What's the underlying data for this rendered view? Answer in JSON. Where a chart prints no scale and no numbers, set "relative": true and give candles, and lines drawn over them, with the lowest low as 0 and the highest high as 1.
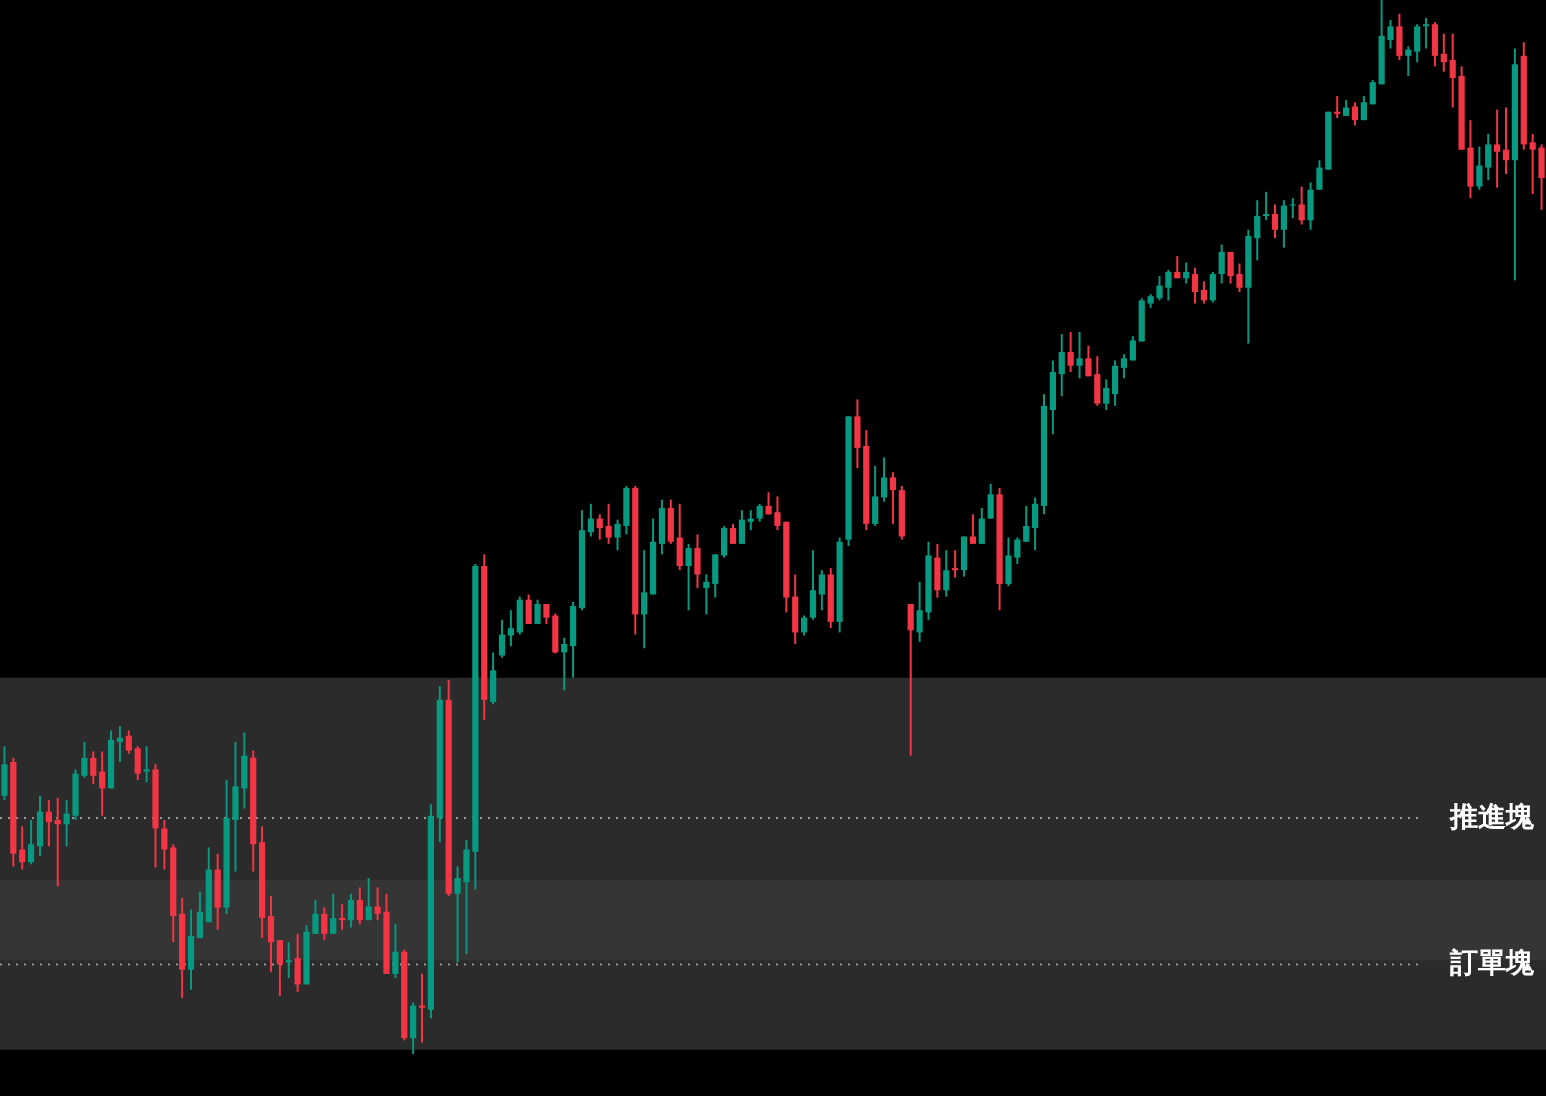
{
  "chart_data": {
    "type": "candlestick",
    "relative": true,
    "categories": [
      null,
      null,
      null,
      null,
      null,
      null,
      null,
      null,
      null,
      null,
      null,
      null,
      null,
      null,
      null,
      null,
      null,
      null,
      null,
      null,
      null,
      null,
      null,
      null,
      null,
      null,
      null,
      null,
      null,
      null,
      null,
      null,
      null,
      null,
      null,
      null,
      null,
      null,
      null,
      null,
      null,
      null,
      null,
      null,
      null,
      null,
      null,
      null,
      null,
      null,
      null,
      null,
      null,
      null,
      null,
      null,
      null,
      null,
      null,
      null,
      null,
      null,
      null,
      null,
      null,
      null,
      null,
      null,
      null,
      null,
      null,
      null,
      null,
      null,
      null,
      null,
      null,
      null,
      null,
      null,
      null,
      null,
      null,
      null,
      null,
      null,
      null,
      null,
      null,
      null,
      null,
      null,
      null,
      null,
      null,
      null,
      null,
      null,
      null,
      null,
      null,
      null,
      null,
      null,
      null,
      null,
      null,
      null,
      null,
      null,
      null,
      null,
      null,
      null,
      null,
      null,
      null,
      null,
      null,
      null,
      null,
      null,
      null,
      null,
      null,
      null,
      null,
      null,
      null,
      null,
      null,
      null,
      null,
      null,
      null,
      null,
      null,
      null,
      null,
      null,
      null,
      null,
      null,
      null,
      null,
      null,
      null,
      null,
      null,
      null,
      null,
      null,
      null,
      null,
      null,
      null,
      null,
      null,
      null,
      null,
      null,
      null,
      null,
      null,
      null,
      null,
      null,
      null,
      null,
      null,
      null,
      null,
      null,
      null
    ],
    "ohlc": [
      [
        0.245,
        0.292,
        0.241,
        0.275
      ],
      [
        0.277,
        0.281,
        0.178,
        0.19
      ],
      [
        0.194,
        0.216,
        0.175,
        0.182
      ],
      [
        0.182,
        0.222,
        0.18,
        0.199
      ],
      [
        0.197,
        0.245,
        0.188,
        0.23
      ],
      [
        0.23,
        0.241,
        0.197,
        0.22
      ],
      [
        0.222,
        0.243,
        0.159,
        0.218
      ],
      [
        0.218,
        0.241,
        0.197,
        0.228
      ],
      [
        0.226,
        0.27,
        0.222,
        0.266
      ],
      [
        0.264,
        0.296,
        0.262,
        0.281
      ],
      [
        0.281,
        0.287,
        0.256,
        0.264
      ],
      [
        0.268,
        0.287,
        0.226,
        0.252
      ],
      [
        0.252,
        0.307,
        0.252,
        0.298
      ],
      [
        0.296,
        0.311,
        0.277,
        0.3
      ],
      [
        0.302,
        0.307,
        0.285,
        0.288
      ],
      [
        0.29,
        0.292,
        0.26,
        0.266
      ],
      [
        0.268,
        0.292,
        0.258,
        0.27
      ],
      [
        0.27,
        0.275,
        0.177,
        0.214
      ],
      [
        0.214,
        0.222,
        0.175,
        0.194
      ],
      [
        0.196,
        0.199,
        0.106,
        0.131
      ],
      [
        0.133,
        0.148,
        0.053,
        0.08
      ],
      [
        0.08,
        0.137,
        0.061,
        0.112
      ],
      [
        0.11,
        0.154,
        0.11,
        0.135
      ],
      [
        0.125,
        0.196,
        0.125,
        0.175
      ],
      [
        0.175,
        0.19,
        0.118,
        0.139
      ],
      [
        0.139,
        0.26,
        0.133,
        0.224
      ],
      [
        0.222,
        0.296,
        0.173,
        0.254
      ],
      [
        0.252,
        0.305,
        0.233,
        0.283
      ],
      [
        0.281,
        0.288,
        0.173,
        0.199
      ],
      [
        0.201,
        0.216,
        0.11,
        0.129
      ],
      [
        0.131,
        0.15,
        0.078,
        0.106
      ],
      [
        0.108,
        0.108,
        0.055,
        0.085
      ],
      [
        0.087,
        0.106,
        0.072,
        0.089
      ],
      [
        0.091,
        0.114,
        0.059,
        0.066
      ],
      [
        0.066,
        0.122,
        0.066,
        0.116
      ],
      [
        0.114,
        0.146,
        0.114,
        0.133
      ],
      [
        0.133,
        0.139,
        0.108,
        0.114
      ],
      [
        0.114,
        0.152,
        0.114,
        0.129
      ],
      [
        0.129,
        0.142,
        0.118,
        0.127
      ],
      [
        0.127,
        0.152,
        0.12,
        0.146
      ],
      [
        0.146,
        0.158,
        0.123,
        0.127
      ],
      [
        0.127,
        0.167,
        0.127,
        0.14
      ],
      [
        0.14,
        0.158,
        0.127,
        0.133
      ],
      [
        0.135,
        0.152,
        0.076,
        0.076
      ],
      [
        0.076,
        0.123,
        0.072,
        0.097
      ],
      [
        0.097,
        0.099,
        0.013,
        0.015
      ],
      [
        0.015,
        0.049,
        0,
        0.046
      ],
      [
        0.046,
        0.076,
        0.011,
        0.044
      ],
      [
        0.042,
        0.237,
        0.034,
        0.226
      ],
      [
        0.224,
        0.349,
        0.201,
        0.336
      ],
      [
        0.336,
        0.355,
        0.15,
        0.152
      ],
      [
        0.152,
        0.178,
        0.087,
        0.167
      ],
      [
        0.163,
        0.203,
        0.095,
        0.194
      ],
      [
        0.192,
        0.465,
        0.156,
        0.463
      ],
      [
        0.463,
        0.474,
        0.317,
        0.336
      ],
      [
        0.334,
        0.381,
        0.332,
        0.364
      ],
      [
        0.378,
        0.412,
        0.376,
        0.398
      ],
      [
        0.397,
        0.421,
        0.387,
        0.404
      ],
      [
        0.4,
        0.434,
        0.398,
        0.431
      ],
      [
        0.431,
        0.436,
        0.408,
        0.408
      ],
      [
        0.408,
        0.431,
        0.408,
        0.427
      ],
      [
        0.427,
        0.427,
        0.408,
        0.414
      ],
      [
        0.416,
        0.418,
        0.38,
        0.381
      ],
      [
        0.381,
        0.395,
        0.345,
        0.389
      ],
      [
        0.387,
        0.429,
        0.357,
        0.425
      ],
      [
        0.423,
        0.516,
        0.421,
        0.497
      ],
      [
        0.495,
        0.522,
        0.491,
        0.508
      ],
      [
        0.508,
        0.512,
        0.488,
        0.499
      ],
      [
        0.501,
        0.522,
        0.484,
        0.49
      ],
      [
        0.49,
        0.507,
        0.478,
        0.503
      ],
      [
        0.501,
        0.539,
        0.493,
        0.537
      ],
      [
        0.537,
        0.539,
        0.398,
        0.417
      ],
      [
        0.417,
        0.478,
        0.385,
        0.438
      ],
      [
        0.436,
        0.508,
        0.436,
        0.486
      ],
      [
        0.484,
        0.526,
        0.474,
        0.518
      ],
      [
        0.518,
        0.526,
        0.484,
        0.486
      ],
      [
        0.49,
        0.522,
        0.459,
        0.463
      ],
      [
        0.463,
        0.484,
        0.421,
        0.48
      ],
      [
        0.48,
        0.493,
        0.442,
        0.455
      ],
      [
        0.442,
        0.455,
        0.417,
        0.448
      ],
      [
        0.446,
        0.474,
        0.433,
        0.474
      ],
      [
        0.473,
        0.501,
        0.471,
        0.499
      ],
      [
        0.499,
        0.503,
        0.484,
        0.484
      ],
      [
        0.484,
        0.516,
        0.484,
        0.507
      ],
      [
        0.505,
        0.516,
        0.497,
        0.508
      ],
      [
        0.508,
        0.522,
        0.505,
        0.52
      ],
      [
        0.52,
        0.533,
        0.512,
        0.512
      ],
      [
        0.514,
        0.529,
        0.497,
        0.501
      ],
      [
        0.505,
        0.505,
        0.419,
        0.433
      ],
      [
        0.434,
        0.455,
        0.389,
        0.4
      ],
      [
        0.4,
        0.416,
        0.397,
        0.414
      ],
      [
        0.414,
        0.478,
        0.412,
        0.44
      ],
      [
        0.436,
        0.459,
        0.421,
        0.455
      ],
      [
        0.455,
        0.461,
        0.404,
        0.41
      ],
      [
        0.41,
        0.49,
        0.4,
        0.486
      ],
      [
        0.488,
        0.605,
        0.482,
        0.605
      ],
      [
        0.605,
        0.621,
        0.556,
        0.575
      ],
      [
        0.577,
        0.592,
        0.497,
        0.503
      ],
      [
        0.503,
        0.558,
        0.501,
        0.529
      ],
      [
        0.528,
        0.566,
        0.524,
        0.547
      ],
      [
        0.547,
        0.552,
        0.503,
        0.535
      ],
      [
        0.535,
        0.539,
        0.488,
        0.491
      ],
      [
        0.427,
        0.427,
        0.283,
        0.402
      ],
      [
        0.4,
        0.448,
        0.391,
        0.421
      ],
      [
        0.419,
        0.486,
        0.412,
        0.473
      ],
      [
        0.471,
        0.484,
        0.433,
        0.44
      ],
      [
        0.44,
        0.478,
        0.434,
        0.459
      ],
      [
        0.461,
        0.478,
        0.452,
        0.459
      ],
      [
        0.459,
        0.491,
        0.453,
        0.491
      ],
      [
        0.491,
        0.512,
        0.484,
        0.484
      ],
      [
        0.484,
        0.518,
        0.484,
        0.508
      ],
      [
        0.508,
        0.541,
        0.508,
        0.531
      ],
      [
        0.531,
        0.537,
        0.421,
        0.446
      ],
      [
        0.446,
        0.49,
        0.444,
        0.473
      ],
      [
        0.471,
        0.49,
        0.465,
        0.488
      ],
      [
        0.486,
        0.52,
        0.486,
        0.501
      ],
      [
        0.499,
        0.528,
        0.478,
        0.522
      ],
      [
        0.52,
        0.626,
        0.512,
        0.615
      ],
      [
        0.611,
        0.658,
        0.588,
        0.647
      ],
      [
        0.645,
        0.683,
        0.624,
        0.666
      ],
      [
        0.666,
        0.685,
        0.647,
        0.653
      ],
      [
        0.653,
        0.685,
        0.641,
        0.66
      ],
      [
        0.66,
        0.672,
        0.643,
        0.643
      ],
      [
        0.645,
        0.662,
        0.615,
        0.617
      ],
      [
        0.617,
        0.64,
        0.611,
        0.632
      ],
      [
        0.626,
        0.658,
        0.615,
        0.653
      ],
      [
        0.651,
        0.664,
        0.641,
        0.66
      ],
      [
        0.658,
        0.681,
        0.658,
        0.677
      ],
      [
        0.676,
        0.717,
        0.676,
        0.715
      ],
      [
        0.712,
        0.721,
        0.708,
        0.719
      ],
      [
        0.717,
        0.738,
        0.715,
        0.729
      ],
      [
        0.727,
        0.744,
        0.715,
        0.742
      ],
      [
        0.742,
        0.757,
        0.736,
        0.736
      ],
      [
        0.736,
        0.751,
        0.731,
        0.742
      ],
      [
        0.74,
        0.746,
        0.712,
        0.723
      ],
      [
        0.725,
        0.733,
        0.712,
        0.715
      ],
      [
        0.715,
        0.742,
        0.713,
        0.74
      ],
      [
        0.74,
        0.768,
        0.731,
        0.761
      ],
      [
        0.761,
        0.761,
        0.731,
        0.738
      ],
      [
        0.74,
        0.75,
        0.723,
        0.727
      ],
      [
        0.727,
        0.782,
        0.674,
        0.776
      ],
      [
        0.774,
        0.81,
        0.753,
        0.795
      ],
      [
        0.795,
        0.818,
        0.791,
        0.797
      ],
      [
        0.797,
        0.806,
        0.774,
        0.782
      ],
      [
        0.782,
        0.81,
        0.765,
        0.805
      ],
      [
        0.805,
        0.812,
        0.793,
        0.806
      ],
      [
        0.806,
        0.823,
        0.787,
        0.791
      ],
      [
        0.791,
        0.827,
        0.782,
        0.82
      ],
      [
        0.82,
        0.848,
        0.82,
        0.841
      ],
      [
        0.839,
        0.894,
        0.839,
        0.894
      ],
      [
        0.894,
        0.909,
        0.888,
        0.892
      ],
      [
        0.89,
        0.905,
        0.89,
        0.898
      ],
      [
        0.899,
        0.903,
        0.881,
        0.886
      ],
      [
        0.886,
        0.909,
        0.886,
        0.903
      ],
      [
        0.901,
        0.924,
        0.901,
        0.922
      ],
      [
        0.92,
        1,
        0.92,
        0.966
      ],
      [
        0.962,
        0.981,
        0.954,
        0.975
      ],
      [
        0.975,
        0.987,
        0.943,
        0.947
      ],
      [
        0.947,
        0.956,
        0.928,
        0.953
      ],
      [
        0.951,
        0.977,
        0.941,
        0.975
      ],
      [
        0.975,
        0.983,
        0.954,
        0.977
      ],
      [
        0.977,
        0.979,
        0.937,
        0.947
      ],
      [
        0.949,
        0.968,
        0.932,
        0.941
      ],
      [
        0.943,
        0.968,
        0.898,
        0.926
      ],
      [
        0.928,
        0.937,
        0.858,
        0.858
      ],
      [
        0.86,
        0.886,
        0.812,
        0.823
      ],
      [
        0.823,
        0.861,
        0.82,
        0.843
      ],
      [
        0.841,
        0.873,
        0.829,
        0.863
      ],
      [
        0.863,
        0.896,
        0.822,
        0.856
      ],
      [
        0.858,
        0.898,
        0.835,
        0.848
      ],
      [
        0.848,
        0.954,
        0.734,
        0.939
      ],
      [
        0.947,
        0.96,
        0.858,
        0.863
      ],
      [
        0.865,
        0.873,
        0.816,
        0.858
      ],
      [
        0.86,
        0.863,
        0.801,
        0.831
      ]
    ],
    "colors": [
      "#089981",
      "#f23645",
      "#f23645",
      "#089981",
      "#089981",
      "#f23645",
      "#f23645",
      "#089981",
      "#089981",
      "#089981",
      "#f23645",
      "#f23645",
      "#089981",
      "#089981",
      "#f23645",
      "#f23645",
      "#089981",
      "#f23645",
      "#f23645",
      "#f23645",
      "#f23645",
      "#089981",
      "#089981",
      "#089981",
      "#f23645",
      "#089981",
      "#089981",
      "#089981",
      "#f23645",
      "#f23645",
      "#f23645",
      "#f23645",
      "#089981",
      "#f23645",
      "#089981",
      "#089981",
      "#f23645",
      "#089981",
      "#f23645",
      "#089981",
      "#f23645",
      "#089981",
      "#f23645",
      "#f23645",
      "#089981",
      "#f23645",
      "#089981",
      "#f23645",
      "#089981",
      "#089981",
      "#f23645",
      "#089981",
      "#089981",
      "#089981",
      "#f23645",
      "#089981",
      "#089981",
      "#089981",
      "#089981",
      "#f23645",
      "#089981",
      "#f23645",
      "#f23645",
      "#089981",
      "#089981",
      "#089981",
      "#089981",
      "#f23645",
      "#f23645",
      "#089981",
      "#089981",
      "#f23645",
      "#089981",
      "#089981",
      "#089981",
      "#f23645",
      "#f23645",
      "#089981",
      "#f23645",
      "#089981",
      "#089981",
      "#089981",
      "#f23645",
      "#089981",
      "#089981",
      "#089981",
      "#f23645",
      "#f23645",
      "#f23645",
      "#f23645",
      "#089981",
      "#089981",
      "#089981",
      "#f23645",
      "#089981",
      "#089981",
      "#f23645",
      "#f23645",
      "#089981",
      "#089981",
      "#f23645",
      "#f23645",
      "#f23645",
      "#089981",
      "#089981",
      "#f23645",
      "#089981",
      "#f23645",
      "#089981",
      "#f23645",
      "#089981",
      "#089981",
      "#f23645",
      "#089981",
      "#089981",
      "#089981",
      "#089981",
      "#089981",
      "#089981",
      "#089981",
      "#f23645",
      "#089981",
      "#f23645",
      "#f23645",
      "#089981",
      "#089981",
      "#089981",
      "#089981",
      "#089981",
      "#089981",
      "#089981",
      "#089981",
      "#f23645",
      "#089981",
      "#f23645",
      "#f23645",
      "#089981",
      "#089981",
      "#f23645",
      "#f23645",
      "#089981",
      "#089981",
      "#089981",
      "#f23645",
      "#089981",
      "#089981",
      "#f23645",
      "#089981",
      "#089981",
      "#089981",
      "#f23645",
      "#089981",
      "#f23645",
      "#089981",
      "#089981",
      "#089981",
      "#089981",
      "#f23645",
      "#089981",
      "#089981",
      "#089981",
      "#f23645",
      "#f23645",
      "#f23645",
      "#f23645",
      "#f23645",
      "#089981",
      "#089981",
      "#f23645",
      "#f23645",
      "#089981",
      "#f23645",
      "#f23645",
      "#f23645"
    ],
    "bands": [
      {
        "axis": "y",
        "from": 0.089,
        "to": 0.357,
        "color": "#3a3a3a"
      },
      {
        "axis": "y",
        "from": 0.004,
        "to": 0.165,
        "color": "#3a3a3a"
      }
    ],
    "ref_lines": [
      {
        "axis": "y",
        "value": 0.224,
        "label": "推進塊",
        "color": "#9a9a9a",
        "line_style": "dotted"
      },
      {
        "axis": "y",
        "value": 0.085,
        "label": "訂單塊",
        "color": "#9a9a9a",
        "line_style": "dotted"
      }
    ]
  }
}
